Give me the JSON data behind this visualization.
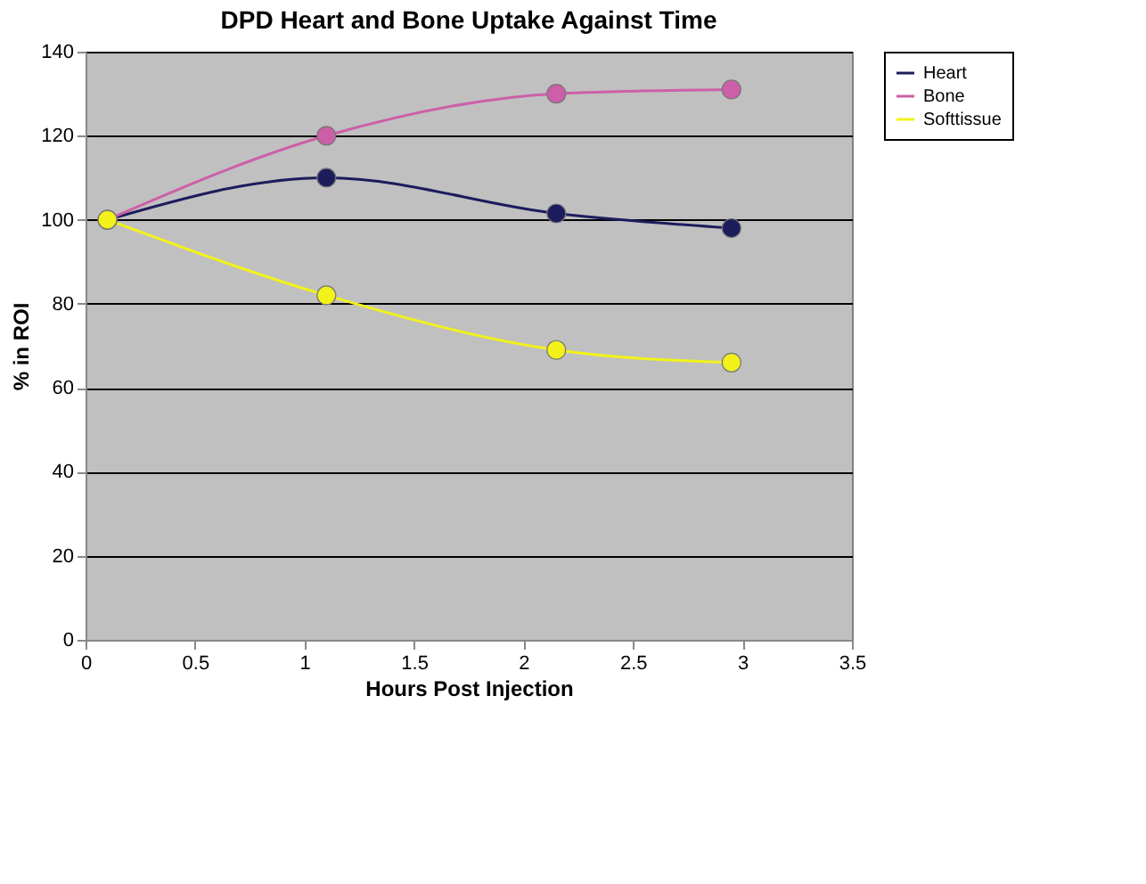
{
  "chart_data": {
    "type": "line",
    "title": "DPD Heart and Bone Uptake Against Time",
    "xlabel": "Hours Post Injection",
    "ylabel": "% in ROI",
    "x": [
      0.1,
      1.1,
      2.15,
      2.95
    ],
    "series": [
      {
        "name": "Heart",
        "color": "#1c1c5c",
        "values": [
          100,
          110,
          101.5,
          98
        ]
      },
      {
        "name": "Bone",
        "color": "#cc5fa8",
        "values": [
          100,
          120,
          130,
          131
        ]
      },
      {
        "name": "Softtissue",
        "color": "#f2f21a",
        "values": [
          100,
          82,
          69,
          66
        ]
      }
    ],
    "xlim": [
      0,
      3.5
    ],
    "xticks": [
      0,
      0.5,
      1,
      1.5,
      2,
      2.5,
      3,
      3.5
    ],
    "ylim": [
      0,
      140
    ],
    "yticks": [
      0,
      20,
      40,
      60,
      80,
      100,
      120,
      140
    ],
    "grid": "y",
    "legend": "right",
    "marker": "circle",
    "line_style": "solid"
  }
}
